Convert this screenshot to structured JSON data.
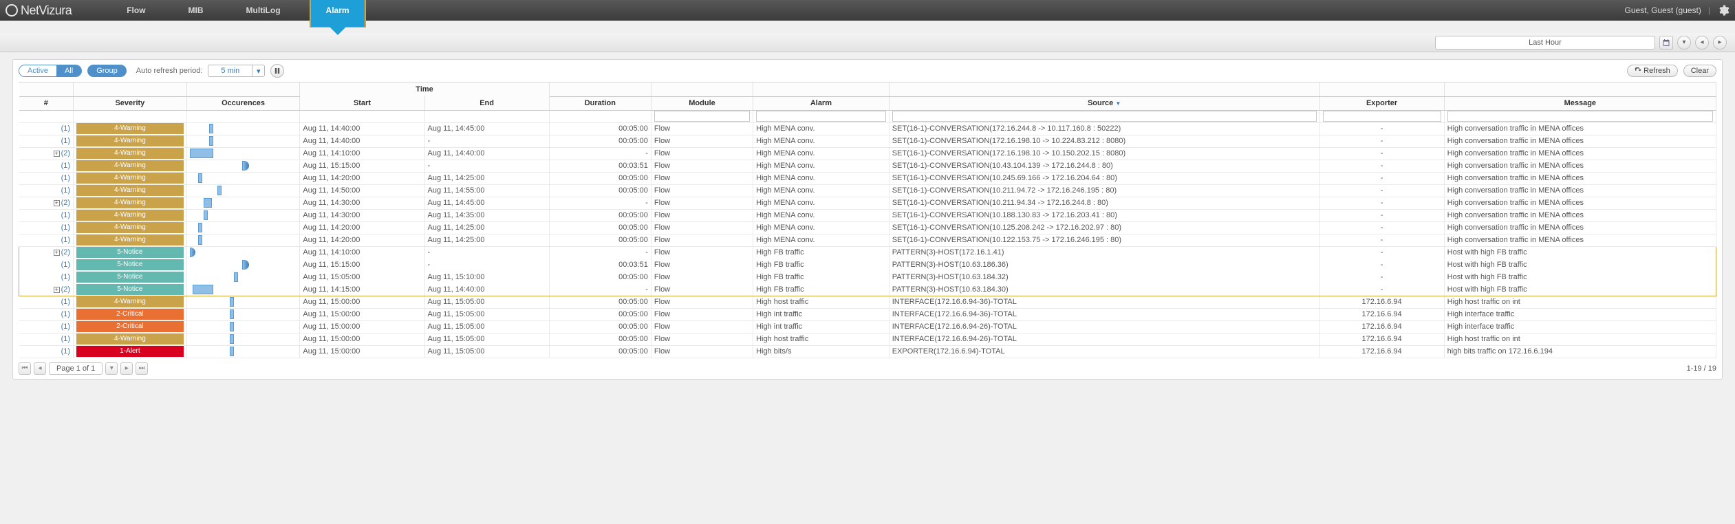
{
  "brand": "NetVizura",
  "nav": {
    "items": [
      "Flow",
      "MIB",
      "MultiLog",
      "Alarm"
    ],
    "active": 3
  },
  "user": {
    "text": "Guest, Guest (guest)"
  },
  "timerange": {
    "label": "Last Hour"
  },
  "toolbar": {
    "active": "Active",
    "all": "All",
    "group": "Group",
    "refresh_label": "Auto refresh period:",
    "refresh_period": "5 min",
    "refresh_btn": "Refresh",
    "clear_btn": "Clear"
  },
  "columns": {
    "hash": "#",
    "severity": "Severity",
    "occurences": "Occurences",
    "time": "Time",
    "start": "Start",
    "end": "End",
    "duration": "Duration",
    "module": "Module",
    "alarm": "Alarm",
    "source": "Source",
    "exporter": "Exporter",
    "message": "Message"
  },
  "severity_colors": {
    "4-Warning": "#c9a24a",
    "5-Notice": "#63b8b0",
    "2-Critical": "#e96f33",
    "1-Alert": "#d9001f"
  },
  "col_widths": {
    "hash": 48,
    "severity": 100,
    "occurences": 100,
    "start": 110,
    "end": 110,
    "duration": 90,
    "module": 90,
    "alarm": 120,
    "source": 380,
    "exporter": 110,
    "message": 240
  },
  "filters_on": [
    "module",
    "alarm",
    "source",
    "exporter",
    "message"
  ],
  "source_sort_icon": "▼",
  "rows": [
    {
      "n": 1,
      "sev": "4-Warning",
      "occ": {
        "l": 28,
        "w": 6
      },
      "start": "Aug 11, 14:40:00",
      "end": "Aug 11, 14:45:00",
      "dur": "00:05:00",
      "mod": "Flow",
      "alarm": "High MENA conv.",
      "src": "SET(16-1)-CONVERSATION(172.16.244.8 -> 10.117.160.8 : 50222)",
      "exp": "-",
      "msg": "High conversation traffic in MENA offices"
    },
    {
      "n": 1,
      "sev": "4-Warning",
      "occ": {
        "l": 28,
        "w": 6
      },
      "start": "Aug 11, 14:40:00",
      "end": "-",
      "dur": "00:05:00",
      "mod": "Flow",
      "alarm": "High MENA conv.",
      "src": "SET(16-1)-CONVERSATION(172.16.198.10 -> 10.224.83.212 : 8080)",
      "exp": "-",
      "msg": "High conversation traffic in MENA offices"
    },
    {
      "n": 2,
      "exp_icon": true,
      "sev": "4-Warning",
      "occ": {
        "l": 0,
        "w": 34
      },
      "start": "Aug 11, 14:10:00",
      "end": "Aug 11, 14:40:00",
      "dur": "-",
      "mod": "Flow",
      "alarm": "High MENA conv.",
      "src": "SET(16-1)-CONVERSATION(172.16.198.10 -> 10.150.202.15 : 8080)",
      "exporter": "-",
      "msg": "High conversation traffic in MENA offices"
    },
    {
      "n": 1,
      "sev": "4-Warning",
      "occ": {
        "l": 76,
        "w": 10,
        "arrow": true
      },
      "start": "Aug 11, 15:15:00",
      "end": "-",
      "dur": "00:03:51",
      "mod": "Flow",
      "alarm": "High MENA conv.",
      "src": "SET(16-1)-CONVERSATION(10.43.104.139 -> 172.16.244.8 : 80)",
      "exp": "-",
      "msg": "High conversation traffic in MENA offices"
    },
    {
      "n": 1,
      "sev": "4-Warning",
      "occ": {
        "l": 12,
        "w": 6
      },
      "start": "Aug 11, 14:20:00",
      "end": "Aug 11, 14:25:00",
      "dur": "00:05:00",
      "mod": "Flow",
      "alarm": "High MENA conv.",
      "src": "SET(16-1)-CONVERSATION(10.245.69.166 -> 172.16.204.64 : 80)",
      "exp": "-",
      "msg": "High conversation traffic in MENA offices"
    },
    {
      "n": 1,
      "sev": "4-Warning",
      "occ": {
        "l": 40,
        "w": 6
      },
      "start": "Aug 11, 14:50:00",
      "end": "Aug 11, 14:55:00",
      "dur": "00:05:00",
      "mod": "Flow",
      "alarm": "High MENA conv.",
      "src": "SET(16-1)-CONVERSATION(10.211.94.72 -> 172.16.246.195 : 80)",
      "exp": "-",
      "msg": "High conversation traffic in MENA offices"
    },
    {
      "n": 2,
      "exp_icon": true,
      "sev": "4-Warning",
      "occ": {
        "l": 20,
        "w": 12
      },
      "start": "Aug 11, 14:30:00",
      "end": "Aug 11, 14:45:00",
      "dur": "-",
      "mod": "Flow",
      "alarm": "High MENA conv.",
      "src": "SET(16-1)-CONVERSATION(10.211.94.34 -> 172.16.244.8 : 80)",
      "exporter": "-",
      "msg": "High conversation traffic in MENA offices"
    },
    {
      "n": 1,
      "sev": "4-Warning",
      "occ": {
        "l": 20,
        "w": 6
      },
      "start": "Aug 11, 14:30:00",
      "end": "Aug 11, 14:35:00",
      "dur": "00:05:00",
      "mod": "Flow",
      "alarm": "High MENA conv.",
      "src": "SET(16-1)-CONVERSATION(10.188.130.83 -> 172.16.203.41 : 80)",
      "exp": "-",
      "msg": "High conversation traffic in MENA offices"
    },
    {
      "n": 1,
      "sev": "4-Warning",
      "occ": {
        "l": 12,
        "w": 6
      },
      "start": "Aug 11, 14:20:00",
      "end": "Aug 11, 14:25:00",
      "dur": "00:05:00",
      "mod": "Flow",
      "alarm": "High MENA conv.",
      "src": "SET(16-1)-CONVERSATION(10.125.208.242 -> 172.16.202.97 : 80)",
      "exp": "-",
      "msg": "High conversation traffic in MENA offices"
    },
    {
      "n": 1,
      "sev": "4-Warning",
      "occ": {
        "l": 12,
        "w": 6
      },
      "start": "Aug 11, 14:20:00",
      "end": "Aug 11, 14:25:00",
      "dur": "00:05:00",
      "mod": "Flow",
      "alarm": "High MENA conv.",
      "src": "SET(16-1)-CONVERSATION(10.122.153.75 -> 172.16.246.195 : 80)",
      "exp": "-",
      "msg": "High conversation traffic in MENA offices"
    },
    {
      "n": 2,
      "exp_icon": true,
      "sev": "5-Notice",
      "hl": "top",
      "occ": {
        "l": 0,
        "w": 8,
        "arrow": true
      },
      "start": "Aug 11, 14:10:00",
      "end": "-",
      "dur": "-",
      "mod": "Flow",
      "alarm": "High FB traffic",
      "src": "PATTERN(3)-HOST(172.16.1.41)",
      "exporter": "-",
      "msg": "Host with high FB traffic"
    },
    {
      "n": 1,
      "sev": "5-Notice",
      "hl": "mid",
      "occ": {
        "l": 76,
        "w": 10,
        "arrow": true
      },
      "start": "Aug 11, 15:15:00",
      "end": "-",
      "dur": "00:03:51",
      "mod": "Flow",
      "alarm": "High FB traffic",
      "src": "PATTERN(3)-HOST(10.63.186.36)",
      "exp": "-",
      "msg": "Host with high FB traffic"
    },
    {
      "n": 1,
      "sev": "5-Notice",
      "hl": "mid",
      "occ": {
        "l": 64,
        "w": 6
      },
      "start": "Aug 11, 15:05:00",
      "end": "Aug 11, 15:10:00",
      "dur": "00:05:00",
      "mod": "Flow",
      "alarm": "High FB traffic",
      "src": "PATTERN(3)-HOST(10.63.184.32)",
      "exp": "-",
      "msg": "Host with high FB traffic"
    },
    {
      "n": 2,
      "exp_icon": true,
      "sev": "5-Notice",
      "hl": "bot",
      "occ": {
        "l": 4,
        "w": 30
      },
      "start": "Aug 11, 14:15:00",
      "end": "Aug 11, 14:40:00",
      "dur": "-",
      "mod": "Flow",
      "alarm": "High FB traffic",
      "src": "PATTERN(3)-HOST(10.63.184.30)",
      "exporter": "-",
      "msg": "Host with high FB traffic"
    },
    {
      "n": 1,
      "sev": "4-Warning",
      "occ": {
        "l": 58,
        "w": 6
      },
      "start": "Aug 11, 15:00:00",
      "end": "Aug 11, 15:05:00",
      "dur": "00:05:00",
      "mod": "Flow",
      "alarm": "High host traffic",
      "src": "INTERFACE(172.16.6.94-36)-TOTAL",
      "exp": "172.16.6.94",
      "msg": "High host traffic on int"
    },
    {
      "n": 1,
      "sev": "2-Critical",
      "occ": {
        "l": 58,
        "w": 6
      },
      "start": "Aug 11, 15:00:00",
      "end": "Aug 11, 15:05:00",
      "dur": "00:05:00",
      "mod": "Flow",
      "alarm": "High int traffic",
      "src": "INTERFACE(172.16.6.94-36)-TOTAL",
      "exp": "172.16.6.94",
      "msg": "High interface traffic"
    },
    {
      "n": 1,
      "sev": "2-Critical",
      "occ": {
        "l": 58,
        "w": 6
      },
      "start": "Aug 11, 15:00:00",
      "end": "Aug 11, 15:05:00",
      "dur": "00:05:00",
      "mod": "Flow",
      "alarm": "High int traffic",
      "src": "INTERFACE(172.16.6.94-26)-TOTAL",
      "exp": "172.16.6.94",
      "msg": "High interface traffic"
    },
    {
      "n": 1,
      "sev": "4-Warning",
      "occ": {
        "l": 58,
        "w": 6
      },
      "start": "Aug 11, 15:00:00",
      "end": "Aug 11, 15:05:00",
      "dur": "00:05:00",
      "mod": "Flow",
      "alarm": "High host traffic",
      "src": "INTERFACE(172.16.6.94-26)-TOTAL",
      "exp": "172.16.6.94",
      "msg": "High host traffic on int"
    },
    {
      "n": 1,
      "sev": "1-Alert",
      "occ": {
        "l": 58,
        "w": 6
      },
      "start": "Aug 11, 15:00:00",
      "end": "Aug 11, 15:05:00",
      "dur": "00:05:00",
      "mod": "Flow",
      "alarm": "High bits/s",
      "src": "EXPORTER(172.16.6.94)-TOTAL",
      "exp": "172.16.6.94",
      "msg": "high bits traffic on 172.16.6.194"
    }
  ],
  "pager": {
    "page": "Page 1 of 1",
    "count": "1-19 / 19"
  }
}
